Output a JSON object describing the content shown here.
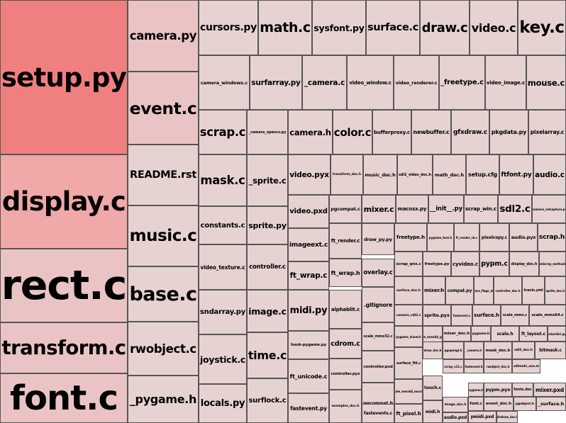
{
  "treemap": {
    "colors": {
      "hot": "#f08080",
      "warm": "#f0a8a8",
      "mid": "#eac4c4",
      "cool": "#e7d2d2",
      "border": "#555555"
    },
    "files": [
      {
        "label": "setup.py",
        "heat": "hot"
      },
      {
        "label": "display.c",
        "heat": "warm"
      },
      {
        "label": "rect.c",
        "heat": "mid"
      },
      {
        "label": "transform.c",
        "heat": "mid"
      },
      {
        "label": "font.c",
        "heat": "mid"
      },
      {
        "label": "camera.py",
        "heat": "mid"
      },
      {
        "label": "event.c",
        "heat": "mid"
      },
      {
        "label": "README.rst",
        "heat": "cool"
      },
      {
        "label": "music.c",
        "heat": "cool"
      },
      {
        "label": "base.c",
        "heat": "cool"
      },
      {
        "label": "rwobject.c",
        "heat": "cool"
      },
      {
        "label": "_pygame.h",
        "heat": "cool"
      },
      {
        "label": "cursors.py",
        "heat": "cool"
      },
      {
        "label": "math.c",
        "heat": "cool"
      },
      {
        "label": "sysfont.py",
        "heat": "cool"
      },
      {
        "label": "surface.c",
        "heat": "cool"
      },
      {
        "label": "draw.c",
        "heat": "cool"
      },
      {
        "label": "video.c",
        "heat": "cool"
      },
      {
        "label": "key.c",
        "heat": "cool"
      },
      {
        "label": "camera_windows.c",
        "heat": "cool"
      },
      {
        "label": "surfarray.py",
        "heat": "cool"
      },
      {
        "label": "_camera.c",
        "heat": "cool"
      },
      {
        "label": "video_window.c",
        "heat": "cool"
      },
      {
        "label": "video_renderer.c",
        "heat": "cool"
      },
      {
        "label": "_freetype.c",
        "heat": "cool"
      },
      {
        "label": "video_image.c",
        "heat": "cool"
      },
      {
        "label": "mouse.c",
        "heat": "cool"
      },
      {
        "label": "scrap.c",
        "heat": "cool"
      },
      {
        "label": "_camera_opencv.py",
        "heat": "cool"
      },
      {
        "label": "camera.h",
        "heat": "cool"
      },
      {
        "label": "color.c",
        "heat": "cool"
      },
      {
        "label": "bufferproxy.c",
        "heat": "cool"
      },
      {
        "label": "newbuffer.c",
        "heat": "cool"
      },
      {
        "label": "gfxdraw.c",
        "heat": "cool"
      },
      {
        "label": "pkgdata.py",
        "heat": "cool"
      },
      {
        "label": "pixelarray.c",
        "heat": "cool"
      },
      {
        "label": "mask.c",
        "heat": "cool"
      },
      {
        "label": "_sprite.c",
        "heat": "cool"
      },
      {
        "label": "video.pyx",
        "heat": "cool"
      },
      {
        "label": "transform_doc.h",
        "heat": "cool"
      },
      {
        "label": "music_doc.h",
        "heat": "cool"
      },
      {
        "label": "sdl2_video_doc.h",
        "heat": "cool"
      },
      {
        "label": "math_doc.h",
        "heat": "cool"
      },
      {
        "label": "setup.cfg",
        "heat": "cool"
      },
      {
        "label": "ftfont.py",
        "heat": "cool"
      },
      {
        "label": "audio.c",
        "heat": "cool"
      },
      {
        "label": "constants.c",
        "heat": "cool"
      },
      {
        "label": "sprite.py",
        "heat": "cool"
      },
      {
        "label": "video.pxd",
        "heat": "cool"
      },
      {
        "label": "pgcompat.c",
        "heat": "cool"
      },
      {
        "label": "mixer.c",
        "heat": "cool"
      },
      {
        "label": "macosx.py",
        "heat": "cool"
      },
      {
        "label": "__init__.py",
        "heat": "cool"
      },
      {
        "label": "scrap_win.c",
        "heat": "cool"
      },
      {
        "label": "sdl2.c",
        "heat": "cool"
      },
      {
        "label": "_camera_vidcapture.py",
        "heat": "cool"
      },
      {
        "label": "imageext.c",
        "heat": "cool"
      },
      {
        "label": "ft_render.c",
        "heat": "cool"
      },
      {
        "label": "draw_py.py",
        "heat": "cool"
      },
      {
        "label": "freetype.h",
        "heat": "cool"
      },
      {
        "label": "pygame_font.h",
        "heat": "cool"
      },
      {
        "label": "ft_render_cb.c",
        "heat": "cool"
      },
      {
        "label": "pixelcopy.c",
        "heat": "cool"
      },
      {
        "label": "audio.pyx",
        "heat": "cool"
      },
      {
        "label": "scrap.h",
        "heat": "cool"
      },
      {
        "label": "video_texture.c",
        "heat": "cool"
      },
      {
        "label": "controller.c",
        "heat": "cool"
      },
      {
        "label": "ft_wrap.c",
        "heat": "cool"
      },
      {
        "label": "ft_wrap.h",
        "heat": "cool"
      },
      {
        "label": "overlay.c",
        "heat": "cool"
      },
      {
        "label": "scrap_qnx.c",
        "heat": "cool"
      },
      {
        "label": "freetype.py",
        "heat": "cool"
      },
      {
        "label": "cyvideo.c",
        "heat": "cool"
      },
      {
        "label": "pypm.c",
        "heat": "cool"
      },
      {
        "label": "display_doc.h",
        "heat": "cool"
      },
      {
        "label": "pixelarray_methods.h",
        "heat": "cool"
      },
      {
        "label": "sndarray.py",
        "heat": "cool"
      },
      {
        "label": "image.c",
        "heat": "cool"
      },
      {
        "label": "midi.py",
        "heat": "cool"
      },
      {
        "label": "alphablit.c",
        "heat": "cool"
      },
      {
        "label": ".gitignore",
        "heat": "cool"
      },
      {
        "label": "surface_doc.h",
        "heat": "cool"
      },
      {
        "label": "mixer.h",
        "heat": "cool"
      },
      {
        "label": "compat.py",
        "heat": "cool"
      },
      {
        "label": "surface_flags_doc.h",
        "heat": "cool"
      },
      {
        "label": "controller_doc.h",
        "heat": "cool"
      },
      {
        "label": "travis.yml",
        "heat": "cool"
      },
      {
        "label": "sprite_doc.h",
        "heat": "cool"
      },
      {
        "label": "joystick.c",
        "heat": "cool"
      },
      {
        "label": "time.c",
        "heat": "cool"
      },
      {
        "label": "hook-pygame.py",
        "heat": "cool"
      },
      {
        "label": "cdrom.c",
        "heat": "cool"
      },
      {
        "label": "scale_mmx32.c",
        "heat": "cool"
      },
      {
        "label": "camera_v4l2.c",
        "heat": "cool"
      },
      {
        "label": "sprite.pyx",
        "heat": "cool"
      },
      {
        "label": "fastevent.c",
        "heat": "cool"
      },
      {
        "label": "surface.h",
        "heat": "cool"
      },
      {
        "label": "scale_mmx.c",
        "heat": "cool"
      },
      {
        "label": "scale_mmx64.c",
        "heat": "cool"
      },
      {
        "label": "controller.pxd",
        "heat": "cool"
      },
      {
        "label": "pygame_mixer.h",
        "heat": "cool"
      },
      {
        "label": "scale_mmx64_gcc.c",
        "heat": "cool"
      },
      {
        "label": "mixer_doc.h",
        "heat": "cool"
      },
      {
        "label": "pygame.h",
        "heat": "cool"
      },
      {
        "label": "scale.h",
        "heat": "cool"
      },
      {
        "label": "ft_layout.c",
        "heat": "cool"
      },
      {
        "label": "colordict.py",
        "heat": "cool"
      },
      {
        "label": "locals.py",
        "heat": "cool"
      },
      {
        "label": "surflock.c",
        "heat": "cool"
      },
      {
        "label": "ft_unicode.c",
        "heat": "cool"
      },
      {
        "label": "controller.pyx",
        "heat": "cool"
      },
      {
        "label": "pgcompat.h",
        "heat": "cool"
      },
      {
        "label": "surface_fill.c",
        "heat": "cool"
      },
      {
        "label": "draw_doc.h",
        "heat": "cool"
      },
      {
        "label": "pgopengl.h",
        "heat": "cool"
      },
      {
        "label": "_camera.h",
        "heat": "cool"
      },
      {
        "label": "mask_doc.h",
        "heat": "cool"
      },
      {
        "label": "sdl2_doc.h",
        "heat": "cool"
      },
      {
        "label": "bitmask.c",
        "heat": "cool"
      },
      {
        "label": "scale_mmx64_msvc.c",
        "heat": "cool"
      },
      {
        "label": "touch.c",
        "heat": "cool"
      },
      {
        "label": "scrap_x11.c",
        "heat": "cool"
      },
      {
        "label": "fastevent.h",
        "heat": "cool"
      },
      {
        "label": "rwobject_doc.h",
        "heat": "cool"
      },
      {
        "label": "sdlmain_osx.m",
        "heat": "cool"
      },
      {
        "label": "fastevent.py",
        "heat": "cool"
      },
      {
        "label": "examples_doc.h",
        "heat": "cool"
      },
      {
        "label": "fastevents.c",
        "heat": "cool"
      },
      {
        "label": "ft_pixel.h",
        "heat": "cool"
      },
      {
        "label": "image_doc.h",
        "heat": "cool"
      },
      {
        "label": "audio.pxd",
        "heat": "cool"
      },
      {
        "label": "pygame.h",
        "heat": "cool"
      },
      {
        "label": "pypm.pyx",
        "heat": "cool"
      },
      {
        "label": "fonts.doc",
        "heat": "cool"
      },
      {
        "label": "mixer.pxd",
        "heat": "cool"
      },
      {
        "label": "font.c",
        "heat": "cool"
      },
      {
        "label": "event_doc.h",
        "heat": "cool"
      },
      {
        "label": "pgobject.h",
        "heat": "cool"
      },
      {
        "label": "_surface.h",
        "heat": "cool"
      },
      {
        "label": "midi.h",
        "heat": "cool"
      },
      {
        "label": "pmidi.pxd",
        "heat": "cool"
      },
      {
        "label": "gfxdraw_doc.h",
        "heat": "cool"
      }
    ]
  }
}
